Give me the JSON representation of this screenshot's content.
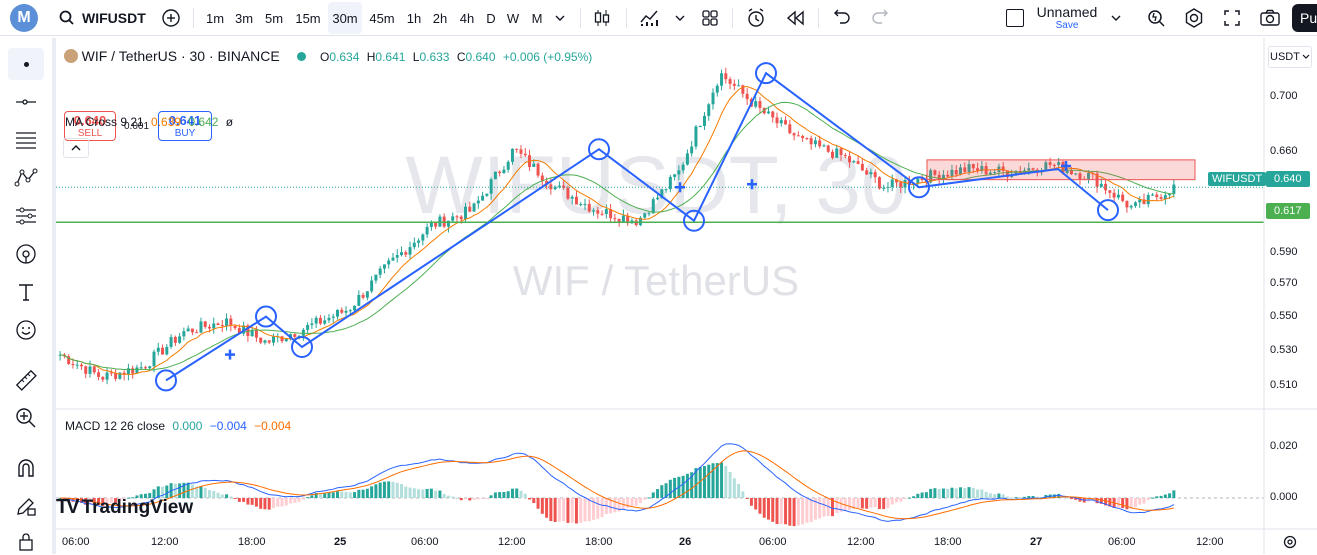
{
  "header": {
    "symbol": "WIFUSDT",
    "intervals": [
      "1m",
      "3m",
      "5m",
      "15m",
      "30m",
      "45m",
      "1h",
      "2h",
      "4h",
      "D",
      "W",
      "M"
    ],
    "active_interval": "30m",
    "layout_name": "Unnamed",
    "save_label": "Save",
    "publish_label": "Pu"
  },
  "legend": {
    "title": "WIF / TetherUS · 30 · BINANCE",
    "ohlc": {
      "o_label": "O",
      "o": "0.634",
      "h_label": "H",
      "h": "0.641",
      "l_label": "L",
      "l": "0.633",
      "c_label": "C",
      "c": "0.640",
      "change": "+0.006 (+0.95%)"
    },
    "sell": {
      "price": "0.640",
      "label": "SELL"
    },
    "spread": "0.001",
    "buy": {
      "price": "0.641",
      "label": "BUY"
    },
    "ma": {
      "name": "MA Cross 9 21",
      "v1": "0.639",
      "v2": "0.642",
      "icon": "hide-eye-icon"
    }
  },
  "watermark": {
    "big": "WIFUSDT, 30",
    "sub": "WIF / TetherUS"
  },
  "currency": "USDT",
  "price_axis": {
    "labels": [
      "0.700",
      "0.660",
      "0.620",
      "0.590",
      "0.570",
      "0.550",
      "0.530",
      "0.510"
    ],
    "current_symbol_tag": "WIFUSDT",
    "current_price_tag": "0.640",
    "line_price_tag": "0.617"
  },
  "macd": {
    "name": "MACD 12 26 close",
    "v1": "0.000",
    "v2": "−0.004",
    "v3": "−0.004",
    "axis": [
      "0.020",
      "0.000"
    ]
  },
  "time_axis": [
    "06:00",
    "12:00",
    "18:00",
    "25",
    "06:00",
    "12:00",
    "18:00",
    "26",
    "06:00",
    "12:00",
    "18:00",
    "27",
    "06:00",
    "12:00"
  ],
  "branding": "TradingView",
  "colors": {
    "up": "#26a69a",
    "down": "#ef5350",
    "ma_fast": "#f57c00",
    "ma_slow": "#4caf50",
    "drawing": "#2962ff",
    "hline": "#4caf50",
    "macd_line": "#2962ff",
    "signal_line": "#ff6d00"
  },
  "chart_data": {
    "type": "line",
    "close_path": [
      0.53,
      0.515,
      0.522,
      0.545,
      0.552,
      0.538,
      0.548,
      0.56,
      0.59,
      0.615,
      0.625,
      0.665,
      0.64,
      0.625,
      0.618,
      0.65,
      0.715,
      0.69,
      0.67,
      0.66,
      0.64,
      0.647,
      0.652,
      0.65,
      0.655,
      0.647,
      0.626,
      0.64
    ],
    "horizontal_line": 0.617,
    "rectangle_range": [
      0.645,
      0.658
    ],
    "ylim": [
      0.5,
      0.72
    ]
  }
}
